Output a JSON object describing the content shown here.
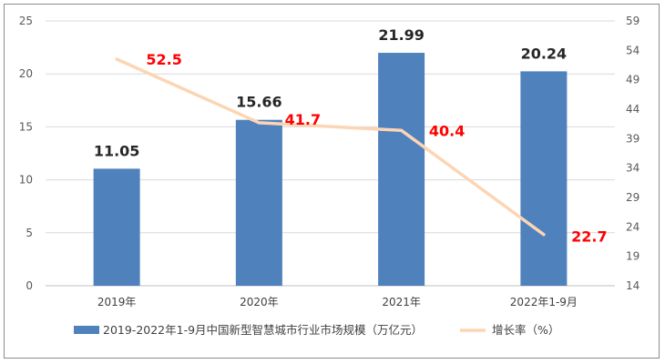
{
  "chart_data": {
    "type": "bar",
    "categories": [
      "2019年",
      "2020年",
      "2021年",
      "2022年1-9月"
    ],
    "series": [
      {
        "name": "2019-2022年1-9月中国新型智慧城市行业市场规模（万亿元）",
        "type": "bar",
        "axis": "left",
        "values": [
          11.05,
          15.66,
          21.99,
          20.24
        ],
        "labels": [
          "11.05",
          "15.66",
          "21.99",
          "20.24"
        ],
        "color": "#4f81bd"
      },
      {
        "name": "增长率（%）",
        "type": "line",
        "axis": "right",
        "values": [
          52.5,
          41.7,
          40.4,
          22.7
        ],
        "labels": [
          "52.5",
          "41.7",
          "40.4",
          "22.7"
        ],
        "color": "#fcd5b4",
        "label_color": "#ff0000"
      }
    ],
    "y_left": {
      "min": 0,
      "max": 25,
      "ticks": [
        "0",
        "5",
        "10",
        "15",
        "20",
        "25"
      ]
    },
    "y_right": {
      "min": 14,
      "max": 59,
      "ticks": [
        "14",
        "19",
        "24",
        "29",
        "34",
        "39",
        "44",
        "49",
        "54",
        "59"
      ]
    },
    "grid": true,
    "legend": "bottom",
    "title": "",
    "xlabel": "",
    "ylabel": ""
  }
}
